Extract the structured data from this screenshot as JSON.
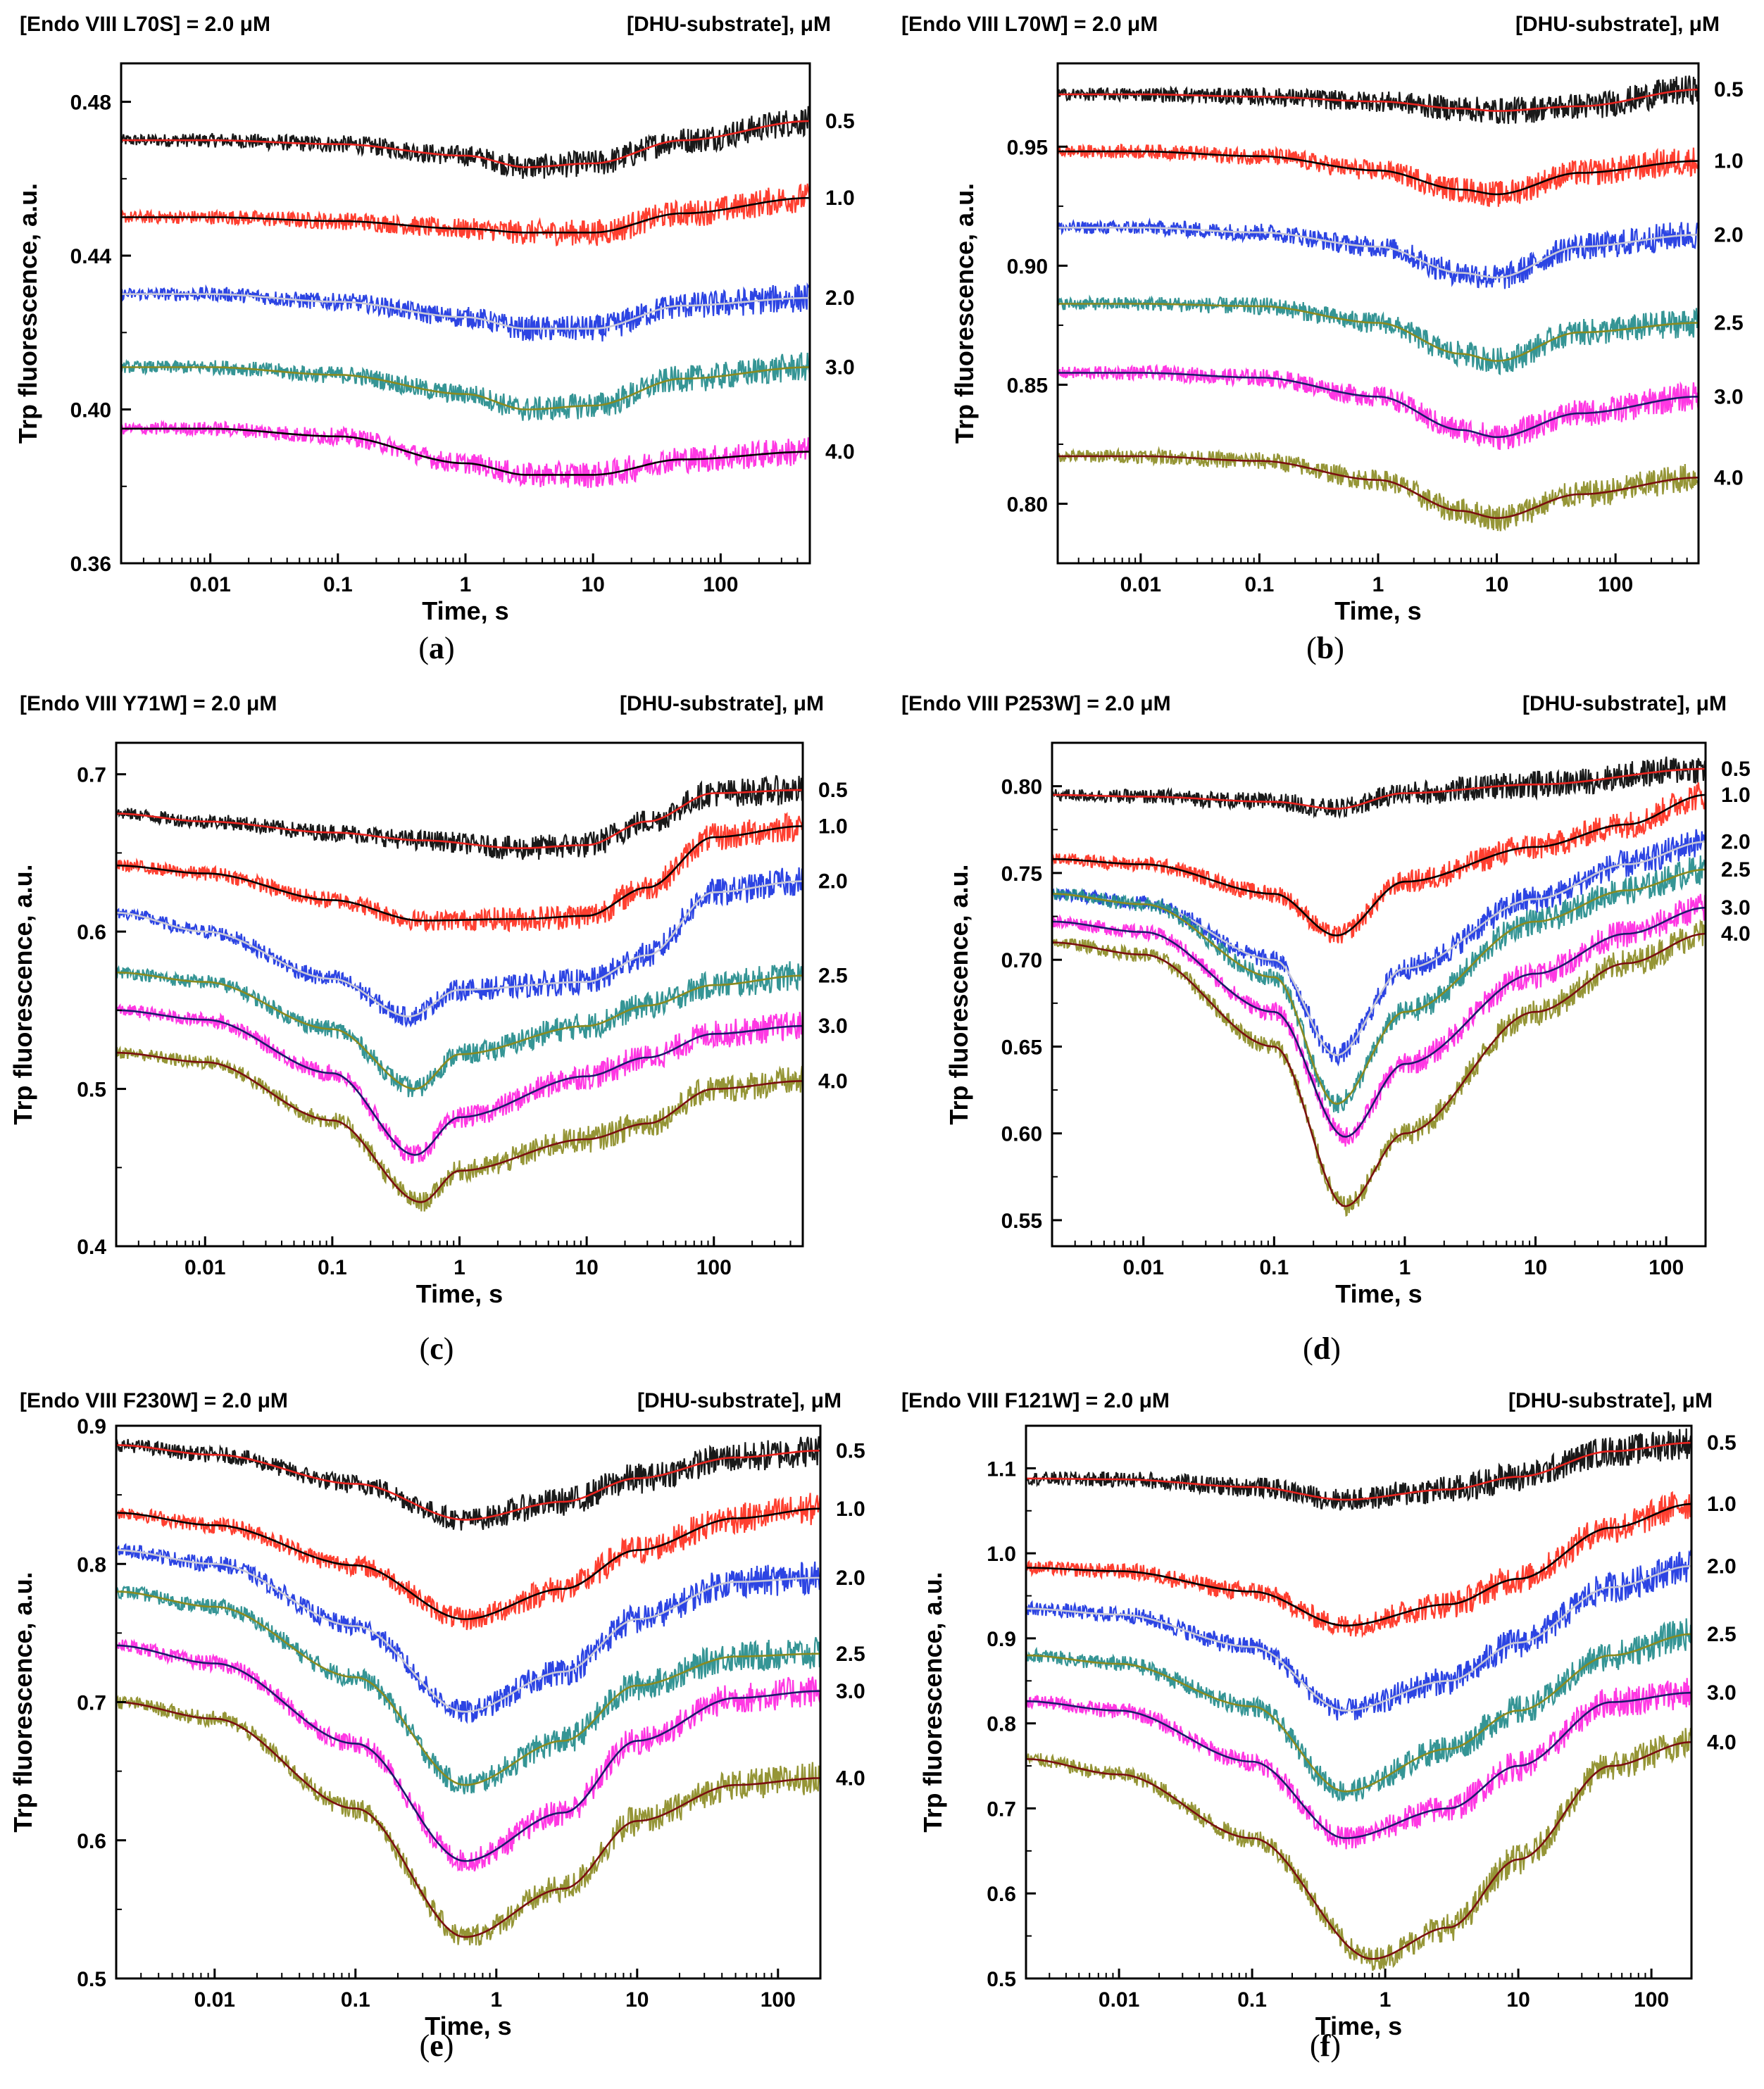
{
  "figure": {
    "header_right": "[DHU-substrate], μM",
    "xlabel": "Time, s",
    "ylabel": "Trp fluorescence, a.u.",
    "x_tick_labels": [
      "0.01",
      "0.1",
      "1",
      "10",
      "100"
    ]
  },
  "chart_data": [
    {
      "panel": "a",
      "type": "line",
      "title": "[Endo VIII L70S] = 2.0 μM",
      "legend_title": "[DHU-substrate], μM",
      "xlabel": "Time, s",
      "ylabel": "Trp fluorescence, a.u.",
      "xscale": "log",
      "xlim": [
        0.002,
        500
      ],
      "ylim": [
        0.36,
        0.49
      ],
      "yticks": [
        0.36,
        0.4,
        0.44,
        0.48
      ],
      "ytick_labels": [
        "0.36",
        "0.40",
        "0.44",
        "0.48"
      ],
      "series": [
        {
          "name": "0.5",
          "color": "#000000",
          "fit_color": "#e8231e",
          "x": [
            0.002,
            0.01,
            0.1,
            1,
            3,
            10,
            50,
            500
          ],
          "values": [
            0.47,
            0.47,
            0.469,
            0.466,
            0.463,
            0.464,
            0.47,
            0.475
          ]
        },
        {
          "name": "1.0",
          "color": "#ff2a1a",
          "fit_color": "#000000",
          "x": [
            0.002,
            0.01,
            0.1,
            1,
            3,
            10,
            50,
            500
          ],
          "values": [
            0.45,
            0.45,
            0.449,
            0.447,
            0.446,
            0.446,
            0.451,
            0.455
          ]
        },
        {
          "name": "2.0",
          "color": "#1530e0",
          "fit_color": "#c8c8d8",
          "x": [
            0.002,
            0.01,
            0.1,
            1,
            3,
            10,
            50,
            500
          ],
          "values": [
            0.43,
            0.43,
            0.428,
            0.424,
            0.421,
            0.421,
            0.427,
            0.429
          ]
        },
        {
          "name": "3.0",
          "color": "#1f8a8a",
          "fit_color": "#8a8a20",
          "x": [
            0.002,
            0.01,
            0.1,
            1,
            3,
            10,
            50,
            500
          ],
          "values": [
            0.411,
            0.411,
            0.409,
            0.404,
            0.4,
            0.401,
            0.408,
            0.411
          ]
        },
        {
          "name": "4.0",
          "color": "#ff22e0",
          "fit_color": "#000000",
          "x": [
            0.002,
            0.01,
            0.1,
            1,
            3,
            10,
            50,
            500
          ],
          "values": [
            0.395,
            0.395,
            0.393,
            0.386,
            0.383,
            0.383,
            0.387,
            0.389
          ]
        }
      ]
    },
    {
      "panel": "b",
      "type": "line",
      "title": "[Endo VIII L70W] = 2.0 μM",
      "legend_title": "[DHU-substrate], μM",
      "xlabel": "Time, s",
      "ylabel": "Trp fluorescence, a.u.",
      "xscale": "log",
      "xlim": [
        0.002,
        500
      ],
      "ylim": [
        0.775,
        0.985
      ],
      "yticks": [
        0.8,
        0.85,
        0.9,
        0.95
      ],
      "ytick_labels": [
        "0.80",
        "0.85",
        "0.90",
        "0.95"
      ],
      "series": [
        {
          "name": "0.5",
          "color": "#000000",
          "fit_color": "#e8231e",
          "x": [
            0.002,
            0.01,
            0.1,
            1,
            5,
            10,
            50,
            500
          ],
          "values": [
            0.972,
            0.972,
            0.971,
            0.969,
            0.966,
            0.965,
            0.967,
            0.974
          ]
        },
        {
          "name": "1.0",
          "color": "#ff2a1a",
          "fit_color": "#000000",
          "x": [
            0.002,
            0.01,
            0.1,
            1,
            5,
            10,
            50,
            500
          ],
          "values": [
            0.948,
            0.948,
            0.946,
            0.94,
            0.932,
            0.93,
            0.939,
            0.944
          ]
        },
        {
          "name": "2.0",
          "color": "#1530e0",
          "fit_color": "#c8c8d8",
          "x": [
            0.002,
            0.01,
            0.1,
            1,
            5,
            10,
            50,
            500
          ],
          "values": [
            0.916,
            0.916,
            0.914,
            0.908,
            0.897,
            0.895,
            0.908,
            0.913
          ]
        },
        {
          "name": "2.5",
          "color": "#1f8a8a",
          "fit_color": "#8a8a20",
          "x": [
            0.002,
            0.01,
            0.1,
            1,
            5,
            10,
            50,
            500
          ],
          "values": [
            0.884,
            0.884,
            0.883,
            0.876,
            0.863,
            0.86,
            0.872,
            0.876
          ]
        },
        {
          "name": "3.0",
          "color": "#ff22e0",
          "fit_color": "#1a1a6a",
          "x": [
            0.002,
            0.01,
            0.1,
            1,
            5,
            10,
            50,
            500
          ],
          "values": [
            0.855,
            0.855,
            0.853,
            0.845,
            0.831,
            0.828,
            0.838,
            0.845
          ]
        },
        {
          "name": "4.0",
          "color": "#8a8a20",
          "fit_color": "#7a1010",
          "x": [
            0.002,
            0.01,
            0.1,
            1,
            5,
            10,
            50,
            500
          ],
          "values": [
            0.82,
            0.82,
            0.818,
            0.81,
            0.797,
            0.794,
            0.804,
            0.811
          ]
        }
      ]
    },
    {
      "panel": "c",
      "type": "line",
      "title": "[Endo VIII Y71W] = 2.0 μM",
      "legend_title": "[DHU-substrate], μM",
      "xlabel": "Time, s",
      "ylabel": "Trp fluorescence, a.u.",
      "xscale": "log",
      "xlim": [
        0.002,
        500
      ],
      "ylim": [
        0.4,
        0.72
      ],
      "yticks": [
        0.4,
        0.5,
        0.6,
        0.7
      ],
      "ytick_labels": [
        "0.4",
        "0.5",
        "0.6",
        "0.7"
      ],
      "series": [
        {
          "name": "0.5",
          "color": "#000000",
          "fit_color": "#e8231e",
          "x": [
            0.002,
            0.01,
            0.1,
            0.5,
            3,
            10,
            30,
            100,
            500
          ],
          "values": [
            0.675,
            0.67,
            0.663,
            0.658,
            0.653,
            0.655,
            0.67,
            0.688,
            0.69
          ]
        },
        {
          "name": "1.0",
          "color": "#ff2a1a",
          "fit_color": "#000000",
          "x": [
            0.002,
            0.01,
            0.1,
            0.5,
            3,
            10,
            30,
            100,
            500
          ],
          "values": [
            0.642,
            0.637,
            0.62,
            0.607,
            0.608,
            0.61,
            0.628,
            0.66,
            0.667
          ]
        },
        {
          "name": "2.0",
          "color": "#1530e0",
          "fit_color": "#c8c8d8",
          "x": [
            0.002,
            0.01,
            0.1,
            0.4,
            1,
            10,
            30,
            100,
            500
          ],
          "values": [
            0.612,
            0.6,
            0.57,
            0.546,
            0.563,
            0.568,
            0.585,
            0.625,
            0.632
          ]
        },
        {
          "name": "2.5",
          "color": "#1f8a8a",
          "fit_color": "#8a8a20",
          "x": [
            0.002,
            0.01,
            0.1,
            0.45,
            1,
            10,
            30,
            100,
            500
          ],
          "values": [
            0.574,
            0.568,
            0.538,
            0.5,
            0.522,
            0.54,
            0.553,
            0.566,
            0.572
          ]
        },
        {
          "name": "3.0",
          "color": "#ff22e0",
          "fit_color": "#1a1a6a",
          "x": [
            0.002,
            0.01,
            0.1,
            0.45,
            1,
            10,
            30,
            100,
            500
          ],
          "values": [
            0.55,
            0.544,
            0.51,
            0.458,
            0.482,
            0.508,
            0.52,
            0.535,
            0.54
          ]
        },
        {
          "name": "4.0",
          "color": "#8a8a20",
          "fit_color": "#7a1010",
          "x": [
            0.002,
            0.01,
            0.1,
            0.5,
            1,
            10,
            30,
            100,
            500
          ],
          "values": [
            0.523,
            0.517,
            0.48,
            0.428,
            0.448,
            0.468,
            0.478,
            0.5,
            0.505
          ]
        }
      ]
    },
    {
      "panel": "d",
      "type": "line",
      "title": "[Endo VIII P253W] = 2.0 μM",
      "legend_title": "[DHU-substrate], μM",
      "xlabel": "Time, s",
      "ylabel": "Trp fluorescence, a.u.",
      "xscale": "log",
      "xlim": [
        0.002,
        200
      ],
      "ylim": [
        0.535,
        0.825
      ],
      "yticks": [
        0.55,
        0.6,
        0.65,
        0.7,
        0.75,
        0.8
      ],
      "ytick_labels": [
        "0.55",
        "0.60",
        "0.65",
        "0.70",
        "0.75",
        "0.80"
      ],
      "series": [
        {
          "name": "0.5",
          "color": "#000000",
          "fit_color": "#e8231e",
          "x": [
            0.002,
            0.01,
            0.1,
            0.3,
            1,
            10,
            200
          ],
          "values": [
            0.795,
            0.794,
            0.791,
            0.787,
            0.796,
            0.801,
            0.81
          ]
        },
        {
          "name": "1.0",
          "color": "#ff2a1a",
          "fit_color": "#000000",
          "x": [
            0.002,
            0.01,
            0.1,
            0.3,
            1,
            10,
            50,
            200
          ],
          "values": [
            0.758,
            0.755,
            0.738,
            0.714,
            0.745,
            0.765,
            0.778,
            0.795
          ]
        },
        {
          "name": "2.0",
          "color": "#1530e0",
          "fit_color": "#c8c8d8",
          "x": [
            0.002,
            0.01,
            0.1,
            0.3,
            1,
            10,
            50,
            200
          ],
          "values": [
            0.738,
            0.733,
            0.7,
            0.645,
            0.695,
            0.735,
            0.755,
            0.768
          ]
        },
        {
          "name": "2.5",
          "color": "#1f8a8a",
          "fit_color": "#8a8a20",
          "x": [
            0.002,
            0.01,
            0.1,
            0.3,
            1,
            10,
            50,
            200
          ],
          "values": [
            0.738,
            0.732,
            0.69,
            0.617,
            0.67,
            0.722,
            0.74,
            0.752
          ]
        },
        {
          "name": "3.0",
          "color": "#ff22e0",
          "fit_color": "#1a1a6a",
          "x": [
            0.002,
            0.01,
            0.1,
            0.35,
            1,
            10,
            50,
            200
          ],
          "values": [
            0.722,
            0.716,
            0.67,
            0.598,
            0.64,
            0.692,
            0.715,
            0.73
          ]
        },
        {
          "name": "4.0",
          "color": "#8a8a20",
          "fit_color": "#7a1010",
          "x": [
            0.002,
            0.01,
            0.1,
            0.35,
            1,
            10,
            50,
            200
          ],
          "values": [
            0.71,
            0.703,
            0.65,
            0.558,
            0.6,
            0.67,
            0.698,
            0.715
          ]
        }
      ]
    },
    {
      "panel": "e",
      "type": "line",
      "title": "[Endo VIII F230W] = 2.0 μM",
      "legend_title": "[DHU-substrate], μM",
      "xlabel": "Time, s",
      "ylabel": "Trp fluorescence, a.u.",
      "xscale": "log",
      "xlim": [
        0.002,
        200
      ],
      "ylim": [
        0.5,
        0.9
      ],
      "yticks": [
        0.5,
        0.6,
        0.7,
        0.8,
        0.9
      ],
      "ytick_labels": [
        "0.5",
        "0.6",
        "0.7",
        "0.8",
        "0.9"
      ],
      "series": [
        {
          "name": "0.5",
          "color": "#000000",
          "fit_color": "#e8231e",
          "x": [
            0.002,
            0.01,
            0.1,
            0.6,
            3,
            10,
            50,
            200
          ],
          "values": [
            0.886,
            0.879,
            0.858,
            0.832,
            0.845,
            0.862,
            0.877,
            0.882
          ]
        },
        {
          "name": "1.0",
          "color": "#ff2a1a",
          "fit_color": "#000000",
          "x": [
            0.002,
            0.01,
            0.1,
            0.6,
            3,
            10,
            50,
            200
          ],
          "values": [
            0.837,
            0.828,
            0.799,
            0.76,
            0.782,
            0.81,
            0.833,
            0.84
          ]
        },
        {
          "name": "2.0",
          "color": "#1530e0",
          "fit_color": "#c8c8d8",
          "x": [
            0.002,
            0.01,
            0.1,
            0.6,
            3,
            10,
            50,
            200
          ],
          "values": [
            0.81,
            0.8,
            0.755,
            0.693,
            0.722,
            0.76,
            0.787,
            0.79
          ]
        },
        {
          "name": "2.5",
          "color": "#1f8a8a",
          "fit_color": "#8a8a20",
          "x": [
            0.002,
            0.01,
            0.1,
            0.6,
            3,
            10,
            50,
            200
          ],
          "values": [
            0.78,
            0.769,
            0.718,
            0.64,
            0.672,
            0.712,
            0.733,
            0.735
          ]
        },
        {
          "name": "3.0",
          "color": "#ff22e0",
          "fit_color": "#1a1a6a",
          "x": [
            0.002,
            0.01,
            0.1,
            0.6,
            3,
            10,
            50,
            200
          ],
          "values": [
            0.741,
            0.728,
            0.67,
            0.585,
            0.62,
            0.672,
            0.703,
            0.708
          ]
        },
        {
          "name": "4.0",
          "color": "#8a8a20",
          "fit_color": "#7a1010",
          "x": [
            0.002,
            0.01,
            0.1,
            0.6,
            3,
            10,
            50,
            200
          ],
          "values": [
            0.7,
            0.688,
            0.623,
            0.53,
            0.565,
            0.614,
            0.64,
            0.645
          ]
        }
      ]
    },
    {
      "panel": "f",
      "type": "line",
      "title": "[Endo VIII F121W] = 2.0 μM",
      "legend_title": "[DHU-substrate], μM",
      "xlabel": "Time, s",
      "ylabel": "Trp fluorescence, a.u.",
      "xscale": "log",
      "xlim": [
        0.002,
        200
      ],
      "ylim": [
        0.5,
        1.15
      ],
      "yticks": [
        0.5,
        0.6,
        0.7,
        0.8,
        0.9,
        1.0,
        1.1
      ],
      "ytick_labels": [
        "0.5",
        "0.6",
        "0.7",
        "0.8",
        "0.9",
        "1.0",
        "1.1"
      ],
      "series": [
        {
          "name": "0.5",
          "color": "#000000",
          "fit_color": "#e8231e",
          "x": [
            0.002,
            0.01,
            0.1,
            0.5,
            3,
            10,
            50,
            200
          ],
          "values": [
            1.088,
            1.087,
            1.078,
            1.063,
            1.075,
            1.09,
            1.12,
            1.13
          ]
        },
        {
          "name": "1.0",
          "color": "#ff2a1a",
          "fit_color": "#000000",
          "x": [
            0.002,
            0.01,
            0.1,
            0.5,
            3,
            10,
            50,
            200
          ],
          "values": [
            0.983,
            0.979,
            0.955,
            0.915,
            0.94,
            0.97,
            1.03,
            1.058
          ]
        },
        {
          "name": "2.0",
          "color": "#1530e0",
          "fit_color": "#c8c8d8",
          "x": [
            0.002,
            0.01,
            0.1,
            0.5,
            3,
            10,
            50,
            200
          ],
          "values": [
            0.935,
            0.928,
            0.89,
            0.815,
            0.85,
            0.895,
            0.96,
            0.985
          ]
        },
        {
          "name": "2.5",
          "color": "#1f8a8a",
          "fit_color": "#8a8a20",
          "x": [
            0.002,
            0.01,
            0.1,
            0.5,
            3,
            10,
            50,
            200
          ],
          "values": [
            0.88,
            0.87,
            0.82,
            0.72,
            0.77,
            0.815,
            0.88,
            0.905
          ]
        },
        {
          "name": "3.0",
          "color": "#ff22e0",
          "fit_color": "#1a1a6a",
          "x": [
            0.002,
            0.01,
            0.1,
            0.5,
            3,
            10,
            50,
            200
          ],
          "values": [
            0.826,
            0.815,
            0.755,
            0.665,
            0.7,
            0.75,
            0.825,
            0.836
          ]
        },
        {
          "name": "4.0",
          "color": "#8a8a20",
          "fit_color": "#7a1010",
          "x": [
            0.002,
            0.01,
            0.1,
            0.8,
            3,
            10,
            50,
            200
          ],
          "values": [
            0.758,
            0.74,
            0.665,
            0.523,
            0.56,
            0.64,
            0.75,
            0.778
          ]
        }
      ]
    }
  ]
}
